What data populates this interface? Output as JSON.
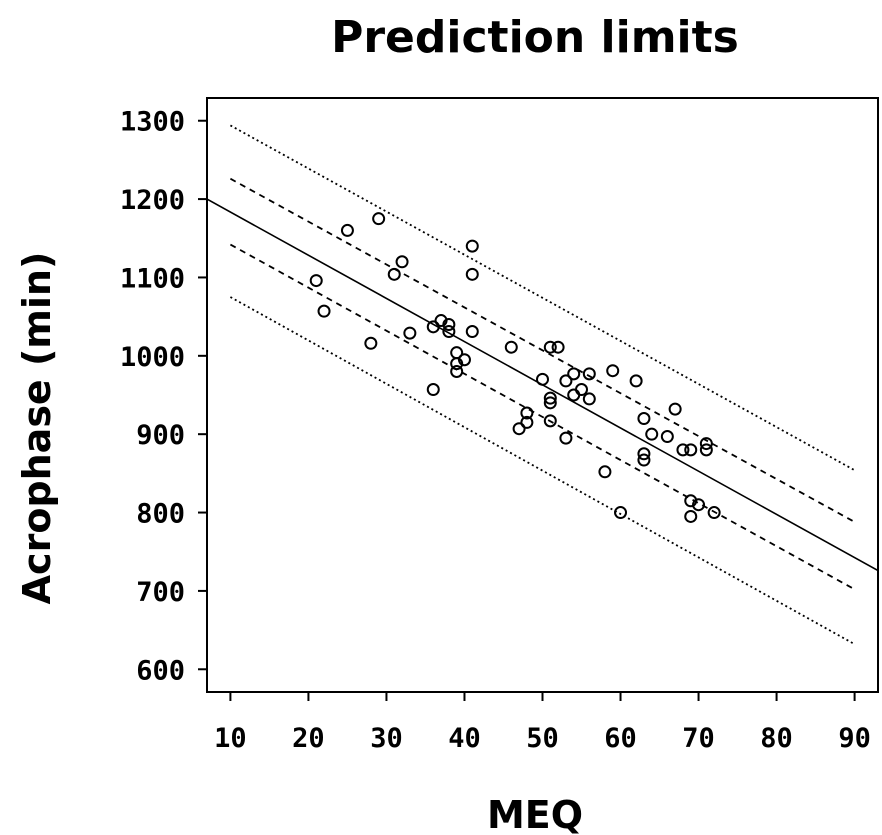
{
  "chart_data": {
    "type": "scatter",
    "title": "Prediction limits",
    "xlabel": "MEQ",
    "ylabel": "Acrophase (min)",
    "xlim": [
      7,
      93
    ],
    "ylim": [
      571,
      1329
    ],
    "xticks": [
      10,
      20,
      30,
      40,
      50,
      60,
      70,
      80,
      90
    ],
    "yticks": [
      600,
      700,
      800,
      900,
      1000,
      1100,
      1200,
      1300
    ],
    "grid": false,
    "points": [
      {
        "x": 21,
        "y": 1096
      },
      {
        "x": 22,
        "y": 1057
      },
      {
        "x": 25,
        "y": 1160
      },
      {
        "x": 28,
        "y": 1016
      },
      {
        "x": 29,
        "y": 1175
      },
      {
        "x": 31,
        "y": 1104
      },
      {
        "x": 32,
        "y": 1120
      },
      {
        "x": 33,
        "y": 1029
      },
      {
        "x": 36,
        "y": 1037
      },
      {
        "x": 36,
        "y": 957
      },
      {
        "x": 37,
        "y": 1045
      },
      {
        "x": 38,
        "y": 1040
      },
      {
        "x": 38,
        "y": 1031
      },
      {
        "x": 39,
        "y": 1004
      },
      {
        "x": 39,
        "y": 990
      },
      {
        "x": 39,
        "y": 980
      },
      {
        "x": 40,
        "y": 995
      },
      {
        "x": 41,
        "y": 1140
      },
      {
        "x": 41,
        "y": 1104
      },
      {
        "x": 41,
        "y": 1031
      },
      {
        "x": 46,
        "y": 1011
      },
      {
        "x": 47,
        "y": 907
      },
      {
        "x": 48,
        "y": 927
      },
      {
        "x": 48,
        "y": 915
      },
      {
        "x": 50,
        "y": 970
      },
      {
        "x": 51,
        "y": 1011
      },
      {
        "x": 51,
        "y": 946
      },
      {
        "x": 51,
        "y": 940
      },
      {
        "x": 51,
        "y": 917
      },
      {
        "x": 52,
        "y": 1011
      },
      {
        "x": 53,
        "y": 968
      },
      {
        "x": 53,
        "y": 895
      },
      {
        "x": 54,
        "y": 977
      },
      {
        "x": 54,
        "y": 950
      },
      {
        "x": 55,
        "y": 957
      },
      {
        "x": 56,
        "y": 977
      },
      {
        "x": 56,
        "y": 945
      },
      {
        "x": 58,
        "y": 852
      },
      {
        "x": 59,
        "y": 981
      },
      {
        "x": 60,
        "y": 800
      },
      {
        "x": 62,
        "y": 968
      },
      {
        "x": 63,
        "y": 920
      },
      {
        "x": 63,
        "y": 875
      },
      {
        "x": 63,
        "y": 867
      },
      {
        "x": 64,
        "y": 900
      },
      {
        "x": 66,
        "y": 897
      },
      {
        "x": 67,
        "y": 932
      },
      {
        "x": 68,
        "y": 880
      },
      {
        "x": 69,
        "y": 880
      },
      {
        "x": 69,
        "y": 815
      },
      {
        "x": 69,
        "y": 795
      },
      {
        "x": 70,
        "y": 810
      },
      {
        "x": 71,
        "y": 888
      },
      {
        "x": 71,
        "y": 880
      },
      {
        "x": 72,
        "y": 800
      }
    ],
    "lines": [
      {
        "role": "regression",
        "style": "solid",
        "color": "#000000",
        "x": [
          7,
          93
        ],
        "y": [
          1200,
          726
        ]
      },
      {
        "role": "upper confidence limit",
        "style": "dashed",
        "color": "#000000",
        "x": [
          10,
          90
        ],
        "y": [
          1226,
          788
        ]
      },
      {
        "role": "lower confidence limit",
        "style": "dashed",
        "color": "#000000",
        "x": [
          10,
          90
        ],
        "y": [
          1142,
          702
        ]
      },
      {
        "role": "upper prediction limit",
        "style": "dotted",
        "color": "#000000",
        "x": [
          10,
          90
        ],
        "y": [
          1294,
          854
        ]
      },
      {
        "role": "lower prediction limit",
        "style": "dotted",
        "color": "#000000",
        "x": [
          10,
          90
        ],
        "y": [
          1075,
          632
        ]
      }
    ]
  }
}
